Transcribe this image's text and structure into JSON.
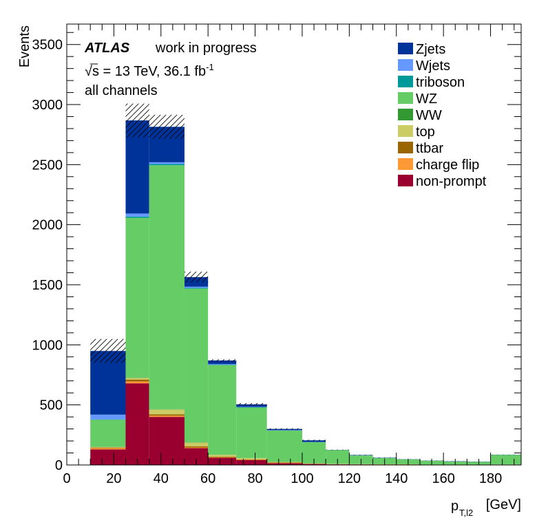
{
  "chart_data": {
    "type": "bar",
    "stacked": true,
    "ylabel": "Events",
    "xlabel_main": "p",
    "xlabel_sub": "T,l2",
    "xlabel_unit": "[GeV]",
    "xlim": [
      0,
      193
    ],
    "ylim": [
      0,
      3670
    ],
    "xticks": [
      0,
      20,
      40,
      60,
      80,
      100,
      120,
      140,
      160,
      180
    ],
    "yticks": [
      0,
      500,
      1000,
      1500,
      2000,
      2500,
      3000,
      3500
    ],
    "bins": [
      [
        10,
        25
      ],
      [
        25,
        35
      ],
      [
        35,
        50
      ],
      [
        50,
        60
      ],
      [
        60,
        72
      ],
      [
        72,
        85
      ],
      [
        85,
        100
      ],
      [
        100,
        110
      ],
      [
        110,
        120
      ],
      [
        120,
        130
      ],
      [
        130,
        140
      ],
      [
        140,
        150
      ],
      [
        150,
        160
      ],
      [
        160,
        170
      ],
      [
        170,
        180
      ],
      [
        180,
        193
      ]
    ],
    "series": [
      {
        "name": "non-prompt",
        "color": "#99002f",
        "values": [
          130,
          680,
          400,
          140,
          60,
          40,
          15,
          8,
          5,
          4,
          3,
          3,
          2,
          2,
          2,
          3
        ]
      },
      {
        "name": "charge flip",
        "color": "#ff9933",
        "values": [
          10,
          15,
          10,
          6,
          4,
          3,
          2,
          1,
          1,
          1,
          1,
          1,
          0,
          0,
          0,
          0
        ]
      },
      {
        "name": "ttbar",
        "color": "#996600",
        "values": [
          5,
          15,
          12,
          10,
          6,
          4,
          3,
          2,
          1,
          1,
          1,
          1,
          0,
          0,
          0,
          0
        ]
      },
      {
        "name": "top",
        "color": "#cccc66",
        "values": [
          5,
          15,
          40,
          30,
          15,
          10,
          5,
          2,
          2,
          1,
          1,
          1,
          1,
          1,
          1,
          1
        ]
      },
      {
        "name": "WW",
        "color": "#339933",
        "values": [
          1,
          3,
          3,
          2,
          1,
          1,
          1,
          1,
          0,
          0,
          0,
          0,
          0,
          0,
          0,
          0
        ]
      },
      {
        "name": "WZ",
        "color": "#66cc66",
        "values": [
          225,
          1330,
          2030,
          1280,
          745,
          420,
          260,
          175,
          115,
          72,
          52,
          40,
          32,
          25,
          23,
          80
        ]
      },
      {
        "name": "triboson",
        "color": "#009999",
        "values": [
          3,
          10,
          10,
          6,
          4,
          3,
          2,
          2,
          1,
          1,
          1,
          1,
          1,
          1,
          1,
          1
        ]
      },
      {
        "name": "Wjets",
        "color": "#6699ff",
        "values": [
          40,
          25,
          15,
          10,
          5,
          3,
          2,
          1,
          0,
          0,
          0,
          0,
          0,
          0,
          0,
          0
        ]
      },
      {
        "name": "Zjets",
        "color": "#003399",
        "values": [
          530,
          775,
          295,
          80,
          30,
          21,
          10,
          13,
          1,
          3,
          2,
          1,
          1,
          2,
          1,
          1
        ]
      }
    ],
    "uncertainty": [
      100,
      140,
      100,
      45,
      10,
      10,
      5,
      5,
      2,
      2,
      2,
      1,
      1,
      1,
      1,
      1
    ],
    "legend_position": "top-right",
    "annotations": {
      "atlas": "ATLAS",
      "status": "work in progress",
      "energy_prefix": "√s = 13 TeV, 36.1 fb",
      "energy_sup": "-1",
      "channel": "all channels"
    }
  }
}
